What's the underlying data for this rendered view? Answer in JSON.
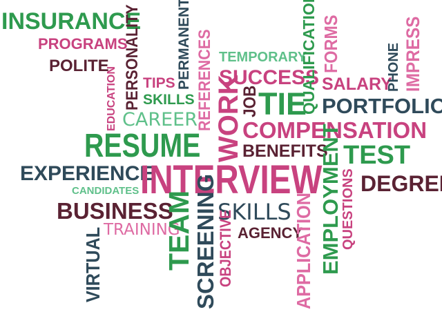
{
  "colors": {
    "green": "#2e9a4e",
    "magenta": "#c8427f",
    "maroon": "#5a2233",
    "slate": "#2f4a5a",
    "light_green": "#5fc08a",
    "pink": "#de6ba3"
  },
  "words": {
    "insurance": "INSURANCE",
    "programs": "PROGRAMS",
    "polite": "POLITE",
    "personality": "PERSONALITY",
    "education": "EDUCATION",
    "tips": "TIPS",
    "skills_small": "SKILLS",
    "permanent": "PERMANENT",
    "references": "REFERENCES",
    "temporary": "TEMPORARY",
    "success": "SUCCESS",
    "qualifications": "QUALIFICATIONS",
    "forms": "FORMS",
    "phone": "PHONE",
    "impress": "IMPRESS",
    "salary": "SALARY",
    "job": "JOB",
    "tie": "TIE",
    "portfolio": "PORTFOLIO",
    "career": "CAREER",
    "work": "WORK",
    "compensation": "COMPENSATION",
    "resume": "RESUME",
    "benefits": "BENEFITS",
    "test": "TEST",
    "experience": "EXPERIENCE",
    "interview": "INTERVIEW",
    "candidates": "CANDIDATES",
    "degree": "DEGREE",
    "business": "BUSINESS",
    "skills_large": "SKILLS",
    "training": "TRAINING",
    "agency": "AGENCY",
    "virtual": "VIRTUAL",
    "team": "TEAM",
    "screening": "SCREENING",
    "objective": "OBJECTIVE",
    "application": "APPLICATION",
    "employment": "EMPLOYMENT",
    "questions": "QUESTIONS"
  }
}
